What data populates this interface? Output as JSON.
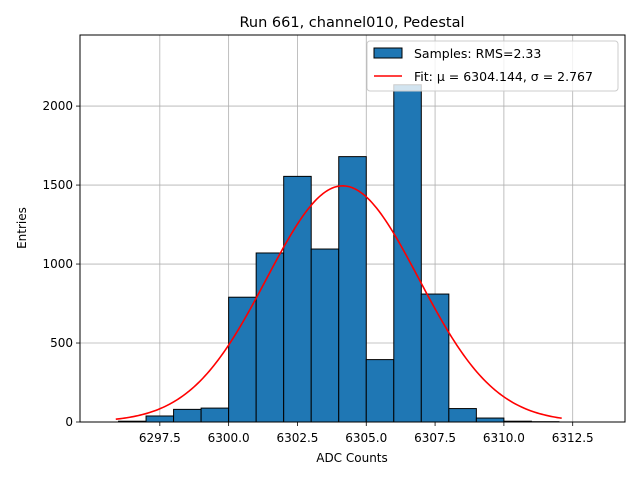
{
  "chart_data": {
    "type": "bar",
    "title": "Run 661, channel010, Pedestal",
    "xlabel": "ADC Counts",
    "ylabel": "Entries",
    "xlim": [
      6294.6,
      6314.4
    ],
    "ylim": [
      0,
      2450
    ],
    "xticks": [
      {
        "value": 6297.5,
        "label": "6297.5"
      },
      {
        "value": 6300.0,
        "label": "6300.0"
      },
      {
        "value": 6302.5,
        "label": "6302.5"
      },
      {
        "value": 6305.0,
        "label": "6305.0"
      },
      {
        "value": 6307.5,
        "label": "6307.5"
      },
      {
        "value": 6310.0,
        "label": "6310.0"
      },
      {
        "value": 6312.5,
        "label": "6312.5"
      }
    ],
    "yticks": [
      {
        "value": 0,
        "label": "0"
      },
      {
        "value": 500,
        "label": "500"
      },
      {
        "value": 1000,
        "label": "1000"
      },
      {
        "value": 1500,
        "label": "1500"
      },
      {
        "value": 2000,
        "label": "2000"
      }
    ],
    "grid": true,
    "legend_position": "top-right",
    "histogram": {
      "name": "Samples: RMS=2.33",
      "color": "#1f77b4",
      "edge_color": "#000000",
      "bins": [
        {
          "x0": 6296,
          "x1": 6297,
          "count": 5
        },
        {
          "x0": 6297,
          "x1": 6298,
          "count": 38
        },
        {
          "x0": 6298,
          "x1": 6299,
          "count": 80
        },
        {
          "x0": 6299,
          "x1": 6300,
          "count": 88
        },
        {
          "x0": 6300,
          "x1": 6301,
          "count": 790
        },
        {
          "x0": 6301,
          "x1": 6302,
          "count": 1070
        },
        {
          "x0": 6302,
          "x1": 6303,
          "count": 1555
        },
        {
          "x0": 6303,
          "x1": 6304,
          "count": 1095
        },
        {
          "x0": 6304,
          "x1": 6305,
          "count": 1680
        },
        {
          "x0": 6305,
          "x1": 6306,
          "count": 395
        },
        {
          "x0": 6306,
          "x1": 6307,
          "count": 2135
        },
        {
          "x0": 6307,
          "x1": 6308,
          "count": 810
        },
        {
          "x0": 6308,
          "x1": 6309,
          "count": 85
        },
        {
          "x0": 6309,
          "x1": 6310,
          "count": 25
        },
        {
          "x0": 6310,
          "x1": 6311,
          "count": 5
        },
        {
          "x0": 6311,
          "x1": 6312,
          "count": 2
        }
      ]
    },
    "fit": {
      "name": "Fit: μ = 6304.144, σ = 2.767",
      "color": "#ff0000",
      "mu": 6304.144,
      "sigma": 2.767,
      "amplitude": 1495,
      "x_range": [
        6295.9,
        6312.1
      ]
    }
  }
}
